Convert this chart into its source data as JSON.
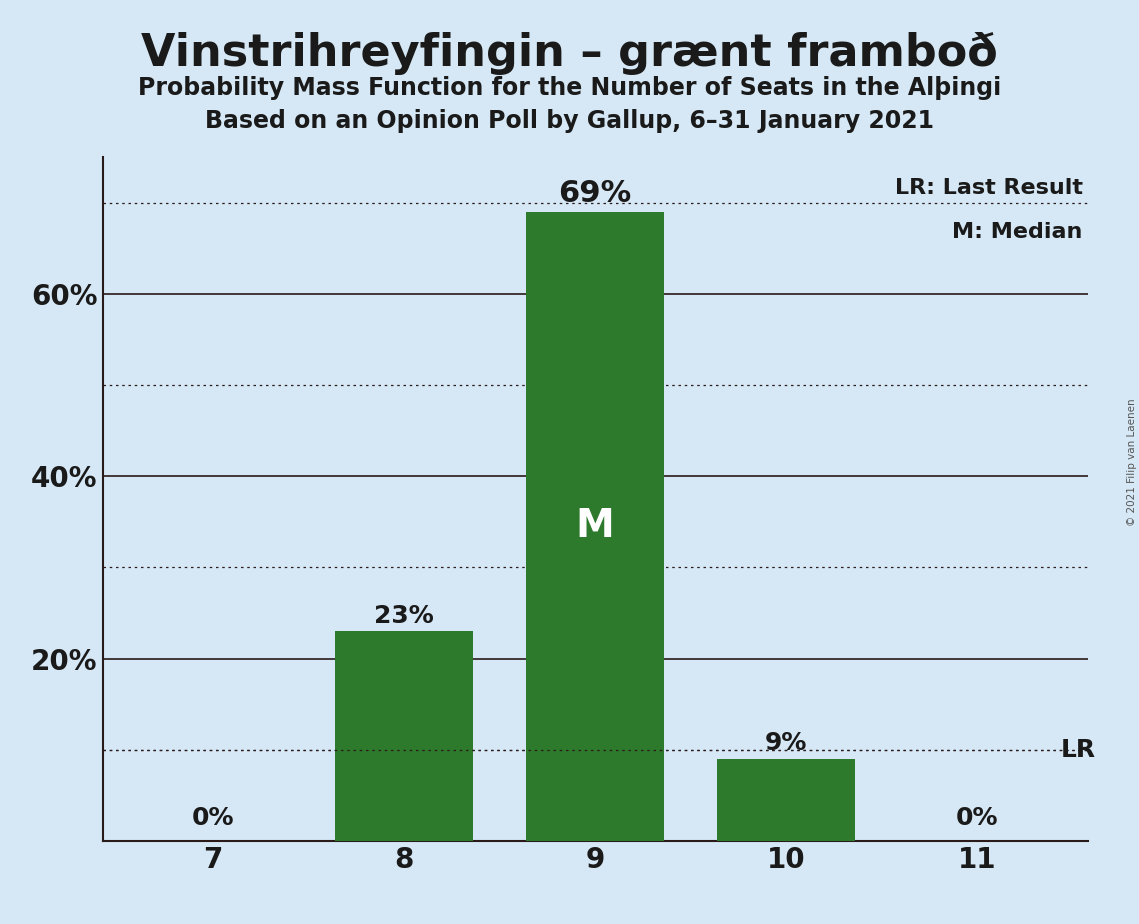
{
  "title": "Vinstrihreyfingin – grænt framboð",
  "subtitle1": "Probability Mass Function for the Number of Seats in the Alþingi",
  "subtitle2": "Based on an Opinion Poll by Gallup, 6–31 January 2021",
  "categories": [
    7,
    8,
    9,
    10,
    11
  ],
  "values": [
    0,
    23,
    69,
    9,
    0
  ],
  "bar_color": "#2d7a2d",
  "background_color": "#d6e8f5",
  "text_color": "#1a1a1a",
  "bar_label_color_outside": "#1a1a1a",
  "bar_label_color_inside": "#ffffff",
  "median_seat": 9,
  "last_result_seat": 11,
  "ylim": [
    0,
    75
  ],
  "solid_gridlines": [
    20,
    40,
    60
  ],
  "dotted_gridlines": [
    10,
    30,
    50,
    70
  ],
  "lr_line_value": 10,
  "copyright_text": "© 2021 Filip van Laenen",
  "lr_label": "LR",
  "legend_lr": "LR: Last Result",
  "legend_m": "M: Median",
  "title_fontsize": 32,
  "subtitle_fontsize": 17,
  "tick_fontsize": 20,
  "label_fontsize_large": 22,
  "label_fontsize_small": 18,
  "m_fontsize": 28
}
